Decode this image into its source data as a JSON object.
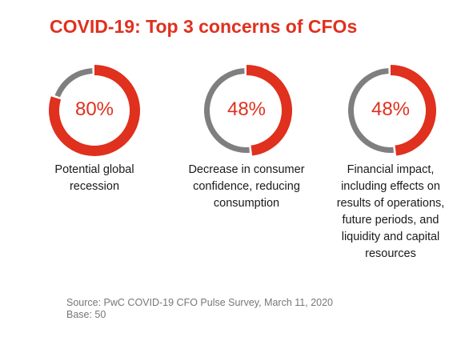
{
  "title": "COVID-19: Top 3 concerns of CFOs",
  "colors": {
    "accent": "#e0301e",
    "remainder": "#7f7f7f"
  },
  "chart_data": [
    {
      "type": "pie",
      "value": 80,
      "label": "80%",
      "caption_lines": [
        "Potential global",
        "recession"
      ]
    },
    {
      "type": "pie",
      "value": 48,
      "label": "48%",
      "caption_lines": [
        "Decrease in consumer",
        "confidence, reducing",
        "consumption"
      ]
    },
    {
      "type": "pie",
      "value": 48,
      "label": "48%",
      "caption_lines": [
        "Financial impact,",
        "including effects on",
        "results of operations,",
        "future periods, and",
        "liquidity and capital",
        "resources"
      ]
    }
  ],
  "source": {
    "line1": "Source: PwC COVID-19 CFO Pulse Survey, March 11, 2020",
    "line2": "Base: 50"
  }
}
